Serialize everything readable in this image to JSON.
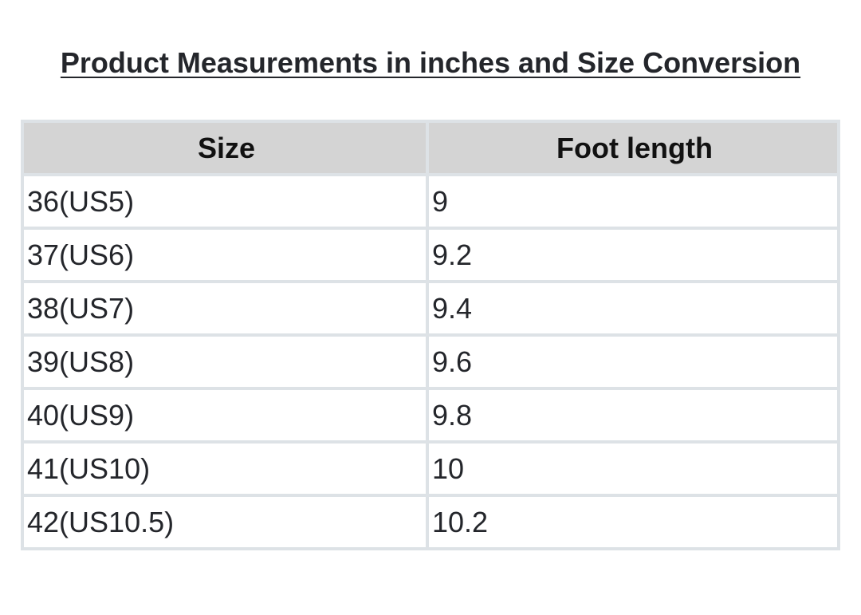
{
  "title": "Product Measurements in inches and Size Conversion",
  "table": {
    "headers": [
      "Size",
      "Foot length"
    ],
    "rows": [
      [
        "36(US5)",
        "9"
      ],
      [
        "37(US6)",
        "9.2"
      ],
      [
        "38(US7)",
        "9.4"
      ],
      [
        "39(US8)",
        "9.6"
      ],
      [
        "40(US9)",
        "9.8"
      ],
      [
        "41(US10)",
        "10"
      ],
      [
        "42(US10.5)",
        "10.2"
      ]
    ]
  }
}
